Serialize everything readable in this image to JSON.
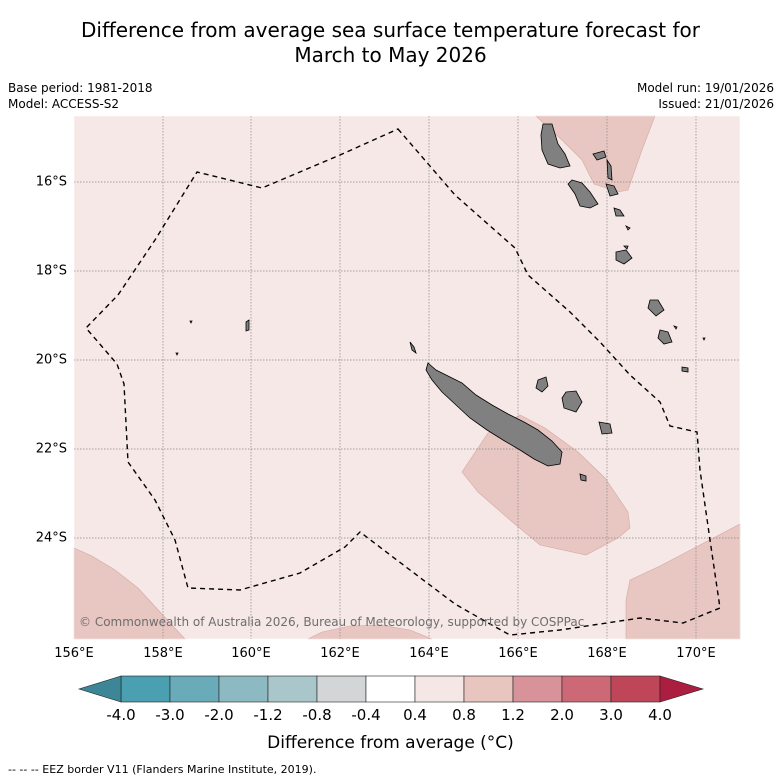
{
  "title_line1": "Difference from average sea surface temperature forecast for",
  "title_line2": "March to May 2026",
  "base_period": "Base period: 1981-2018",
  "model": "Model: ACCESS-S2",
  "model_run": "Model run: 19/01/2026",
  "issued": "Issued: 21/01/2026",
  "copyright": "© Commonwealth of Australia 2026, Bureau of Meteorology, supported by COSPPac",
  "lon_labels": [
    "156°E",
    "158°E",
    "160°E",
    "162°E",
    "164°E",
    "166°E",
    "168°E",
    "170°E"
  ],
  "lat_labels": [
    "16°S",
    "18°S",
    "20°S",
    "22°S",
    "24°S"
  ],
  "colorbar": {
    "title": "Difference from average (°C)",
    "ticks": [
      "-4.0",
      "-3.0",
      "-2.0",
      "-1.2",
      "-0.8",
      "-0.4",
      "0.4",
      "0.8",
      "1.2",
      "2.0",
      "3.0",
      "4.0"
    ],
    "colors": [
      "#4a9fb1",
      "#6aabba",
      "#8db9c3",
      "#a9c7cb",
      "#d3d6d6",
      "#ffffff",
      "#f5e7e5",
      "#e9c5c0",
      "#d8929a",
      "#cd6976",
      "#bf4658"
    ],
    "extend_low_color": "#3d8697",
    "extend_high_color": "#ac1e40"
  },
  "colors": {
    "ocean_default": "#f5e8e6",
    "warm_patch": "#e8c6c1",
    "land": "#808080",
    "grid": "#888888"
  },
  "legend_footer": "--  --  -- EEZ border V11 (Flanders Marine Institute, 2019)."
}
